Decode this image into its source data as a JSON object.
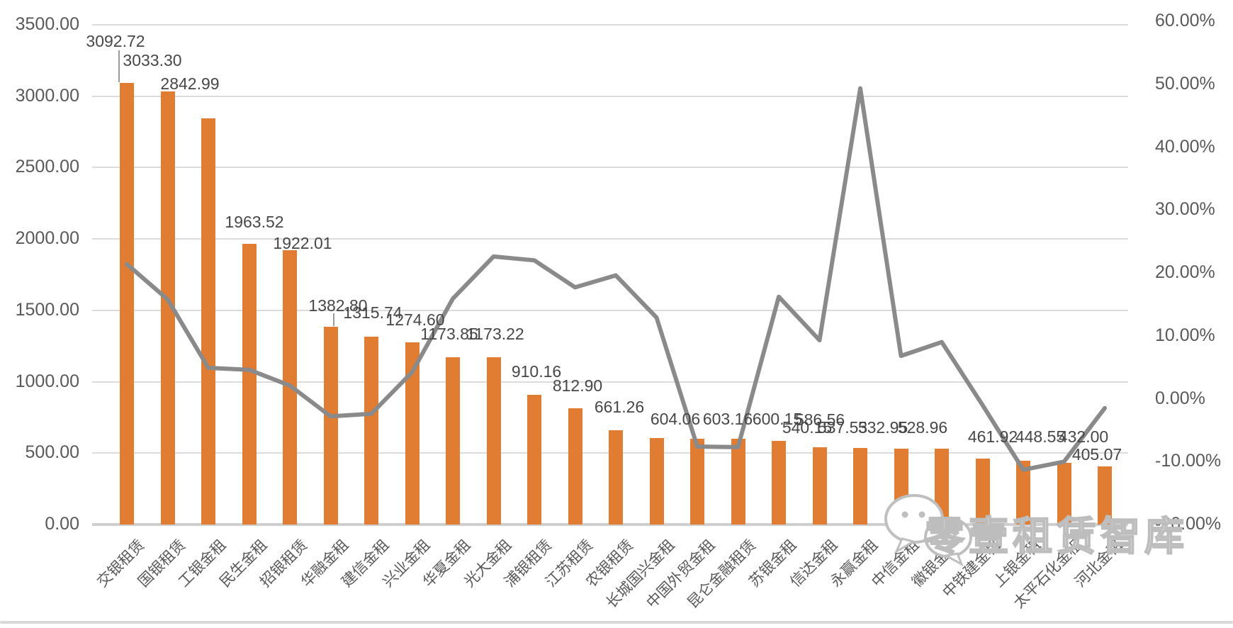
{
  "watermark": {
    "text": "零壹租赁智库",
    "icon": "wechat-icon"
  },
  "chart_data": {
    "type": "combo-bar-line",
    "title": "",
    "legend": "none",
    "gridlines": true,
    "categories": [
      "交银租赁",
      "国银租赁",
      "工银金租",
      "民生金租",
      "招银租赁",
      "华融金租",
      "建信金租",
      "兴业金租",
      "华夏金租",
      "光大金租",
      "浦银租赁",
      "江苏租赁",
      "农银租赁",
      "长城国兴金租",
      "中国外贸金租",
      "昆仑金融租赁",
      "苏银金租",
      "信达金租",
      "永赢金租",
      "中信金租",
      "徽银金租",
      "中铁建金租",
      "上银金租",
      "太平石化金租",
      "河北金租"
    ],
    "series": [
      {
        "name": "bar-series",
        "type": "bar",
        "color": "#E17D33",
        "values": [
          3092.72,
          3033.3,
          2842.99,
          1963.52,
          1922.01,
          1382.8,
          1315.74,
          1274.6,
          1173.85,
          1173.22,
          910.16,
          812.9,
          661.26,
          604.06,
          603.16,
          600.15,
          586.56,
          540.15,
          537.53,
          532.95,
          528.96,
          461.92,
          448.55,
          432.0,
          405.07
        ],
        "data_labels": [
          "3092.72",
          "3033.30",
          "2842.99",
          "1963.52",
          "1922.01",
          "1382.80",
          "1315.74",
          "1274.60",
          "1173.85",
          "1173.22",
          "910.16",
          "812.90",
          "661.26",
          "604.06",
          "603.16",
          "600.15",
          "586.56",
          "540.15",
          "537.53",
          "532.95",
          "528.96",
          "461.92",
          "448.55",
          "432.00",
          "405.07"
        ]
      },
      {
        "name": "line-series",
        "type": "line",
        "color": "#8A8A8A",
        "values_percent": [
          21.4,
          15.8,
          4.9,
          4.6,
          2.1,
          -2.8,
          -2.4,
          4.2,
          15.9,
          22.6,
          22.0,
          17.7,
          19.6,
          12.9,
          -7.6,
          -7.7,
          16.2,
          9.3,
          49.33,
          6.8,
          9.0,
          -1.0,
          -11.3,
          -10.0,
          -1.5
        ]
      }
    ],
    "primary_axis": {
      "min": 0,
      "max": 3500,
      "step": 500,
      "tick_labels": [
        "3500.00",
        "3000.00",
        "2500.00",
        "2000.00",
        "1500.00",
        "1000.00",
        "500.00",
        "0.00"
      ]
    },
    "secondary_axis": {
      "min": -20,
      "max": 60,
      "step": 10,
      "tick_labels": [
        "60.00%",
        "50.00%",
        "40.00%",
        "30.00%",
        "20.00%",
        "10.00%",
        "0.00%",
        "-10.00%",
        "-20.00%"
      ]
    }
  }
}
